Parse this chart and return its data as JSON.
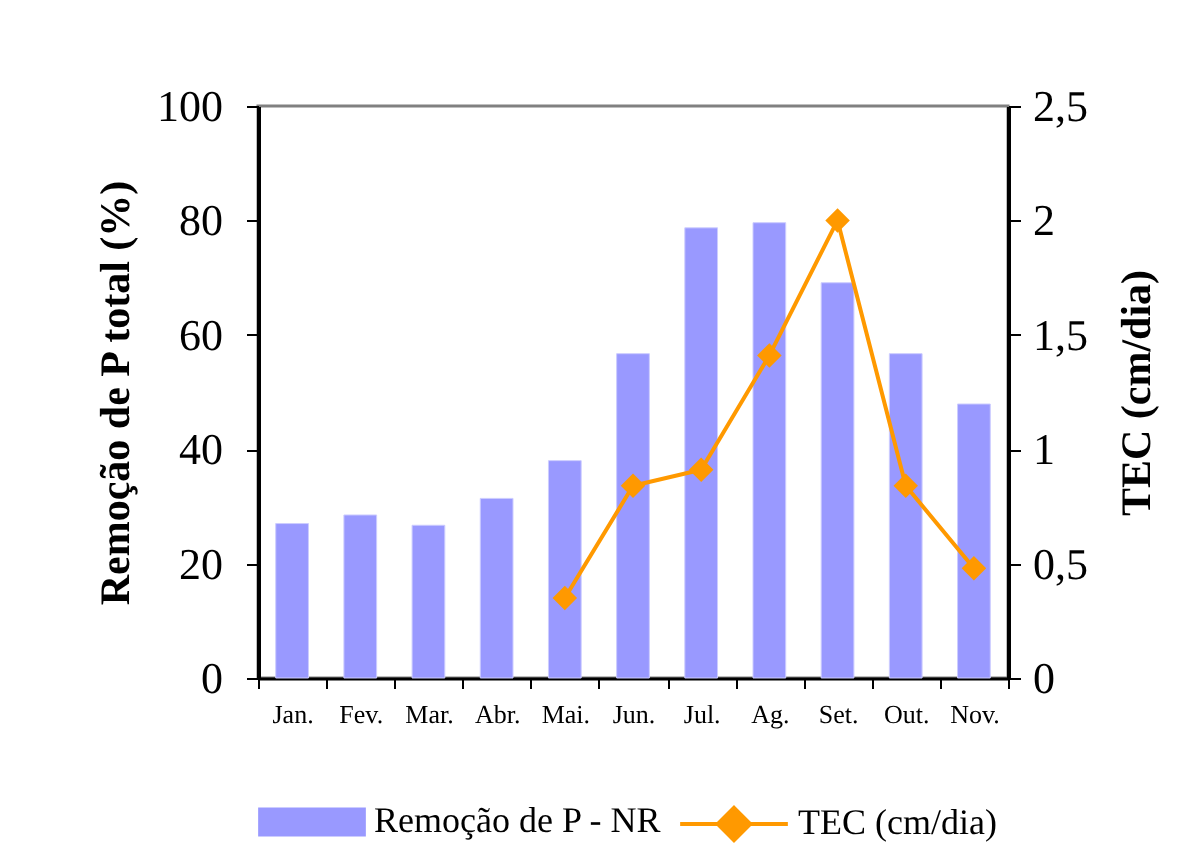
{
  "chart_data": {
    "type": "bar",
    "ylabel": "Remoção de P total (%)",
    "y2label": "TEC (cm/dia)",
    "categories": [
      "Jan.",
      "Fev.",
      "Mar.",
      "Abr.",
      "Mai.",
      "Jun.",
      "Jul.",
      "Ag.",
      "Set.",
      "Out.",
      "Nov."
    ],
    "series": [
      {
        "name": "Remoção de P - NR",
        "color": "#9999ff",
        "values": [
          27,
          28.5,
          26.7,
          31.4,
          38,
          56.7,
          78.7,
          79.6,
          69.1,
          56.7,
          47.9
        ]
      },
      {
        "name": "TEC (cm/dia)",
        "type": "line",
        "axis": "y2",
        "color": "#ff9900",
        "values": [
          null,
          null,
          null,
          null,
          0.35,
          0.84,
          0.91,
          1.41,
          2.0,
          0.84,
          0.48
        ]
      }
    ],
    "ylim": [
      0,
      100
    ],
    "yticks": [
      0,
      20,
      40,
      60,
      80,
      100
    ],
    "y2lim": [
      0,
      2.5
    ],
    "y2ticks": [
      0,
      {
        "value": 0.5,
        "label": "0,5"
      },
      1,
      {
        "value": 1.5,
        "label": "1,5"
      },
      2,
      {
        "value": 2.5,
        "label": "2,5"
      }
    ],
    "legend": "bottom",
    "grid": false,
    "marker": "diamond",
    "line_style": "solid"
  }
}
